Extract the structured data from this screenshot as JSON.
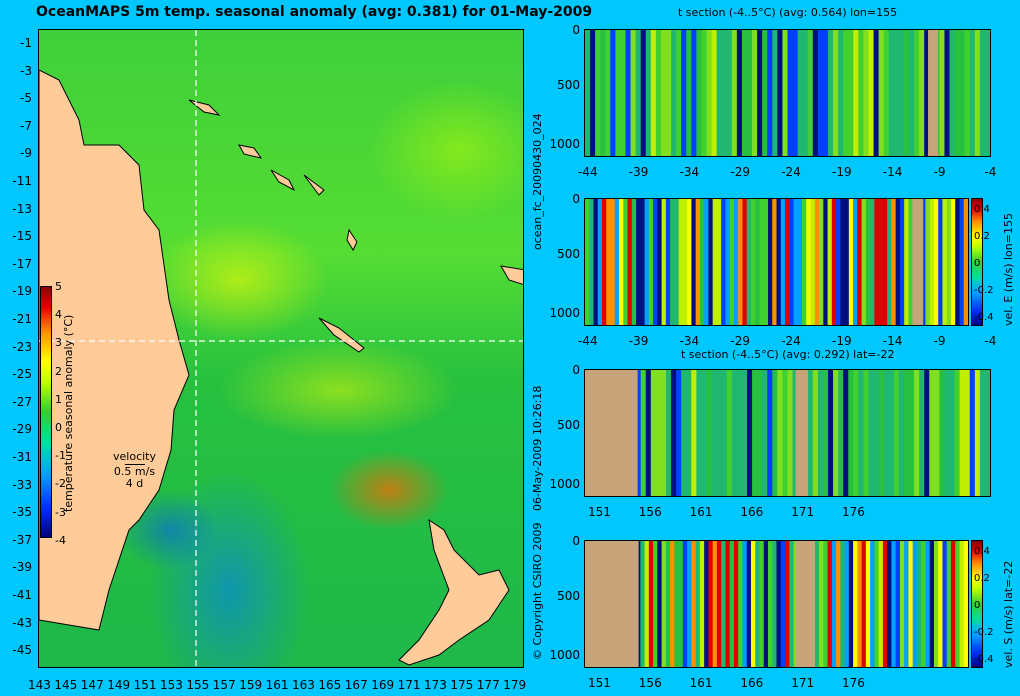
{
  "title": "OceanMAPS 5m temp. seasonal anomaly (avg: 0.381) for 01-May-2009",
  "credits": {
    "copyright": "© Copyright CSIRO 2009",
    "timestamp": "06-May-2009 10:26:18",
    "run": "ocean_fc_20090430_024"
  },
  "colors": {
    "background": "#00c8ff",
    "land": "#ffcc99",
    "section_land": "#c8a47a"
  },
  "icons": [
    "continent-outline",
    "island-outline",
    "velocity-arrow"
  ],
  "chart_data": [
    {
      "type": "heatmap",
      "title": "OceanMAPS 5m temp. seasonal anomaly (avg: 0.381) for 01-May-2009",
      "x_ticks": [
        "143",
        "145",
        "147",
        "149",
        "151",
        "153",
        "155",
        "157",
        "159",
        "161",
        "163",
        "165",
        "167",
        "169",
        "171",
        "173",
        "175",
        "177",
        "179"
      ],
      "y_ticks": [
        "-1",
        "-3",
        "-5",
        "-7",
        "-9",
        "-11",
        "-13",
        "-15",
        "-17",
        "-19",
        "-21",
        "-23",
        "-25",
        "-27",
        "-29",
        "-31",
        "-33",
        "-35",
        "-37",
        "-39",
        "-41",
        "-43",
        "-45"
      ],
      "xlim": [
        143,
        180
      ],
      "ylim": [
        -45,
        0
      ],
      "average": 0.381,
      "crosshair": {
        "lon": 155,
        "lat": -22
      },
      "colorbar": {
        "label": "temperature seasonal anomaly (°C)",
        "ticks": [
          "5",
          "4",
          "3",
          "2",
          "1",
          "0",
          "-1",
          "-2",
          "-3",
          "-4"
        ],
        "range": [
          -4,
          5
        ]
      },
      "velocity_key": {
        "label": "velocity",
        "speed": "0.5 m/s",
        "period": "4 d"
      }
    },
    {
      "type": "heatmap",
      "title": "t section (-4..5°C) (avg: 0.564) lon=155",
      "x_ticks": [
        "-44",
        "-39",
        "-34",
        "-29",
        "-24",
        "-19",
        "-14",
        "-9",
        "-4"
      ],
      "y_ticks": [
        "0",
        "500",
        "1000"
      ],
      "ylim": [
        1050,
        0
      ]
    },
    {
      "type": "heatmap",
      "title": "",
      "x_ticks": [
        "-44",
        "-39",
        "-34",
        "-29",
        "-24",
        "-19",
        "-14",
        "-9",
        "-4"
      ],
      "y_ticks": [
        "0",
        "500",
        "1000"
      ],
      "ylim": [
        1050,
        0
      ],
      "colorbar": {
        "label": "vel. E (m/s) lon=155",
        "ticks": [
          "0.4",
          "0.2",
          "0",
          "-0.2",
          "-0.4"
        ],
        "range": [
          -0.4,
          0.4
        ]
      }
    },
    {
      "type": "heatmap",
      "title": "t section (-4..5°C) (avg: 0.292) lat=-22",
      "x_ticks": [
        "151",
        "156",
        "161",
        "166",
        "171",
        "176"
      ],
      "y_ticks": [
        "0",
        "500",
        "1000"
      ],
      "ylim": [
        1050,
        0
      ]
    },
    {
      "type": "heatmap",
      "title": "",
      "x_ticks": [
        "151",
        "156",
        "161",
        "166",
        "171",
        "176"
      ],
      "y_ticks": [
        "0",
        "500",
        "1000"
      ],
      "ylim": [
        1050,
        0
      ],
      "colorbar": {
        "label": "vel. S (m/s) lat=-22",
        "ticks": [
          "0.4",
          "0.2",
          "0",
          "-0.2",
          "-0.4"
        ],
        "range": [
          -0.4,
          0.4
        ]
      }
    }
  ]
}
